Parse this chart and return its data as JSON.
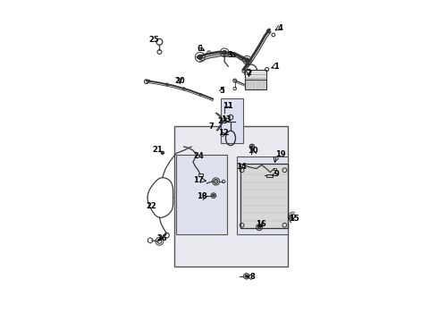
{
  "bg_color": "#ffffff",
  "part_color": "#333333",
  "box_fill_main": "#e8eaf0",
  "box_fill_inner": "#dfe2ee",
  "figsize": [
    4.9,
    3.6
  ],
  "dpi": 100,
  "labels": {
    "1": [
      4.25,
      8.35,
      4.05,
      8.25
    ],
    "2": [
      3.55,
      8.05,
      3.55,
      8.1
    ],
    "3": [
      3.05,
      8.65,
      3.25,
      8.65
    ],
    "4": [
      4.35,
      9.55,
      4.15,
      9.42
    ],
    "5": [
      2.65,
      7.6,
      2.65,
      7.75
    ],
    "6": [
      2.05,
      8.85,
      2.25,
      8.82
    ],
    "7": [
      2.3,
      6.35,
      2.3,
      6.35
    ],
    "8": [
      3.55,
      1.45,
      3.35,
      1.52
    ],
    "9": [
      4.3,
      4.75,
      4.15,
      4.78
    ],
    "10": [
      3.65,
      5.65,
      3.55,
      5.72
    ],
    "11": [
      2.85,
      6.9,
      2.85,
      6.9
    ],
    "12": [
      2.75,
      6.2,
      2.75,
      6.2
    ],
    "13": [
      2.85,
      6.6,
      2.85,
      6.6
    ],
    "14": [
      3.3,
      5.05,
      3.3,
      5.05
    ],
    "15": [
      4.75,
      3.35,
      4.6,
      3.45
    ],
    "16": [
      3.95,
      3.15,
      3.8,
      3.2
    ],
    "17": [
      2.1,
      4.55,
      2.3,
      4.58
    ],
    "18": [
      2.2,
      4.1,
      2.4,
      4.1
    ],
    "19": [
      4.3,
      5.45,
      4.15,
      5.35
    ],
    "20": [
      1.25,
      7.75,
      1.25,
      7.75
    ],
    "21": [
      0.55,
      5.55,
      0.55,
      5.55
    ],
    "22": [
      0.3,
      3.7,
      0.3,
      3.7
    ],
    "23": [
      2.7,
      6.45,
      2.7,
      6.45
    ],
    "24": [
      1.85,
      5.45,
      1.85,
      5.45
    ],
    "25": [
      0.45,
      9.05,
      0.45,
      9.05
    ],
    "26": [
      0.7,
      2.8,
      0.7,
      2.8
    ]
  }
}
